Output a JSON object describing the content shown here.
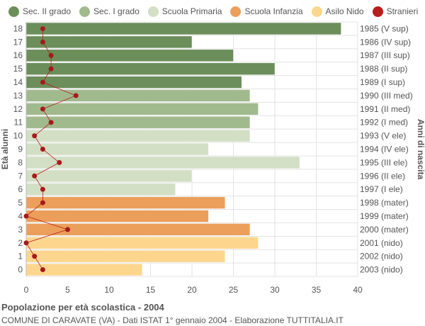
{
  "legend": [
    {
      "label": "Sec. II grado",
      "color": "#6b8e5a"
    },
    {
      "label": "Sec. I grado",
      "color": "#a0ba8e"
    },
    {
      "label": "Scuola Primaria",
      "color": "#d3dfc4"
    },
    {
      "label": "Scuola Infanzia",
      "color": "#eb9f5a"
    },
    {
      "label": "Asilo Nido",
      "color": "#fdd68e"
    },
    {
      "label": "Stranieri",
      "color": "#b81c1c"
    }
  ],
  "footer": {
    "title": "Popolazione per età scolastica - 2004",
    "subtitle": "COMUNE DI CARAVATE (VA) - Dati ISTAT 1° gennaio 2004 - Elaborazione TUTTITALIA.IT"
  },
  "chart_data": {
    "type": "bar",
    "orientation": "horizontal",
    "ylabel": "Età alunni",
    "ylabel_right": "Anni di nascita",
    "xlim": [
      0,
      40
    ],
    "xticks": [
      0,
      5,
      10,
      15,
      20,
      25,
      30,
      35,
      40
    ],
    "grid": true,
    "categories": [
      18,
      17,
      16,
      15,
      14,
      13,
      12,
      11,
      10,
      9,
      8,
      7,
      6,
      5,
      4,
      3,
      2,
      1,
      0
    ],
    "birth_years": [
      "1985 (V sup)",
      "1986 (IV sup)",
      "1987 (III sup)",
      "1988 (II sup)",
      "1989 (I sup)",
      "1990 (III med)",
      "1991 (II med)",
      "1992 (I med)",
      "1993 (V ele)",
      "1994 (IV ele)",
      "1995 (III ele)",
      "1996 (II ele)",
      "1997 (I ele)",
      "1998 (mater)",
      "1999 (mater)",
      "2000 (mater)",
      "2001 (nido)",
      "2002 (nido)",
      "2003 (nido)"
    ],
    "values": [
      38,
      20,
      25,
      30,
      26,
      27,
      28,
      27,
      27,
      22,
      33,
      20,
      18,
      24,
      22,
      27,
      28,
      24,
      14
    ],
    "groups": [
      "Sec. II grado",
      "Sec. II grado",
      "Sec. II grado",
      "Sec. II grado",
      "Sec. II grado",
      "Sec. I grado",
      "Sec. I grado",
      "Sec. I grado",
      "Scuola Primaria",
      "Scuola Primaria",
      "Scuola Primaria",
      "Scuola Primaria",
      "Scuola Primaria",
      "Scuola Infanzia",
      "Scuola Infanzia",
      "Scuola Infanzia",
      "Asilo Nido",
      "Asilo Nido",
      "Asilo Nido"
    ],
    "stranieri": [
      2,
      2,
      3,
      3,
      2,
      6,
      2,
      3,
      1,
      2,
      4,
      1,
      2,
      2,
      0,
      5,
      0,
      1,
      2
    ]
  }
}
